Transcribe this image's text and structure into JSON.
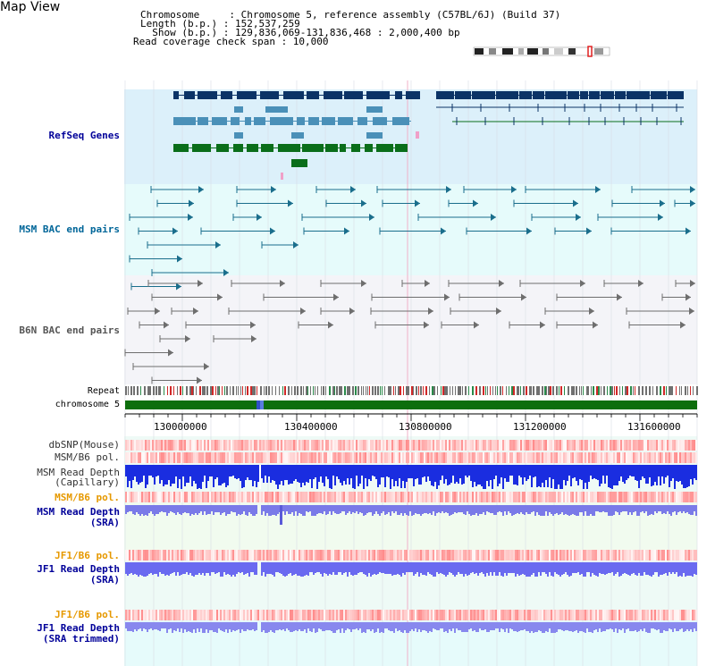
{
  "page": {
    "title": "Map View"
  },
  "info": {
    "chromosome": "Chromosome     : Chromosome 5, reference assembly (C57BL/6J) (Build 37)",
    "length": "Length (b.p.) : 152,537,259",
    "show": "  Show (b.p.) : 129,836,069-131,836,468 : 2,000,400 bp",
    "coverage": "Read coverage check span : 10,000"
  },
  "tracks": {
    "refseq": "RefSeq Genes",
    "msm_bac": "MSM BAC end pairs",
    "b6n_bac": "B6N BAC end pairs",
    "repeat": "Repeat",
    "chromosome": "chromosome 5",
    "dbsnp": "dbSNP(Mouse)",
    "msm_b6_pol_1": "MSM/B6 pol.",
    "msm_read_depth_cap": "MSM Read Depth\n(Capillary)",
    "msm_b6_pol_2": "MSM/B6 pol.",
    "msm_read_depth_sra": "MSM Read Depth\n(SRA)",
    "jf1_b6_pol_1": "JF1/B6 pol.",
    "jf1_read_depth_sra": "JF1 Read Depth\n(SRA)",
    "jf1_b6_pol_2": "JF1/B6 pol.",
    "jf1_read_depth_trim": "JF1 Read Depth\n(SRA trimmed)"
  },
  "axis": {
    "ticks": [
      "130000000",
      "130400000",
      "130800000",
      "131200000",
      "131600000"
    ]
  },
  "colors": {
    "refseq_bg": "#dcf0fa",
    "msm_bg": "#e6fbfb",
    "b6n_bg": "#f4f4f8",
    "lower_bg": "#eefaf6",
    "gene_navy": "#0b3366",
    "gene_teal": "#4a90b8",
    "gene_green": "#0a6e1a",
    "msm_teal": "#1a6e8c",
    "b6n_gray": "#6e6e6e",
    "chrom_green": "#0d6e0d",
    "label_blue": "#000099",
    "label_orange": "#e69900",
    "label_teal": "#006699",
    "label_gray": "#555555"
  }
}
